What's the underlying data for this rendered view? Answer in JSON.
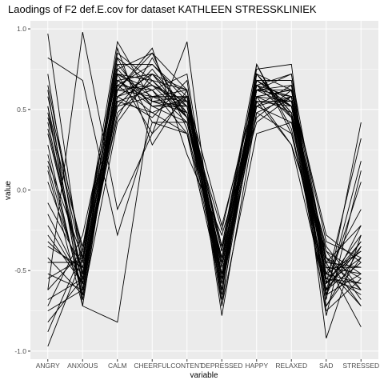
{
  "chart_data": {
    "type": "line",
    "title": "Laodings of F2 def.E.cov for dataset KATHLEEN STRESSKLINIEK",
    "xlabel": "variable",
    "ylabel": "value",
    "categories": [
      "ANGRY",
      "ANXIOUS",
      "CALM",
      "CHEERFUL",
      "CONTENT",
      "DEPRESSED",
      "HAPPY",
      "RELAXED",
      "SAD",
      "STRESSED"
    ],
    "ylim": [
      -1.05,
      1.05
    ],
    "yticks": [
      -1.0,
      -0.5,
      0.0,
      0.5,
      1.0
    ],
    "ytick_labels": [
      "-1.0",
      "-0.5",
      "0.0",
      "0.5",
      "1.0"
    ],
    "grid": true,
    "series_color": "#000000",
    "panel_color": "#ebebeb",
    "grid_color": "#ffffff",
    "series": [
      {
        "values": [
          0.97,
          -0.52,
          0.82,
          0.65,
          0.45,
          -0.38,
          0.72,
          0.46,
          -0.52,
          -0.38
        ]
      },
      {
        "values": [
          -0.97,
          -0.42,
          0.75,
          0.85,
          0.62,
          -0.55,
          0.65,
          0.58,
          -0.78,
          0.12
        ]
      },
      {
        "values": [
          0.82,
          0.68,
          -0.28,
          0.42,
          0.35,
          -0.62,
          0.58,
          0.28,
          -0.65,
          -0.52
        ]
      },
      {
        "values": [
          -0.88,
          -0.38,
          0.92,
          0.55,
          0.58,
          -0.45,
          0.68,
          0.52,
          -0.45,
          -0.22
        ]
      },
      {
        "values": [
          0.52,
          -0.68,
          0.62,
          0.88,
          0.22,
          -0.28,
          0.45,
          0.62,
          -0.28,
          -0.45
        ]
      },
      {
        "values": [
          -0.62,
          0.98,
          -0.12,
          0.35,
          0.92,
          -0.72,
          0.35,
          0.42,
          -0.35,
          -0.62
        ]
      },
      {
        "values": [
          0.12,
          -0.72,
          0.68,
          0.72,
          0.52,
          -0.35,
          0.78,
          0.35,
          -0.58,
          0.32
        ]
      },
      {
        "values": [
          -0.45,
          -0.45,
          0.88,
          0.28,
          0.62,
          -0.52,
          0.62,
          0.72,
          -0.72,
          -0.35
        ]
      },
      {
        "values": [
          0.38,
          -0.52,
          0.45,
          0.82,
          0.45,
          -0.48,
          0.52,
          0.58,
          -0.42,
          -0.72
        ]
      },
      {
        "values": [
          -0.72,
          -0.28,
          0.72,
          0.62,
          0.35,
          -0.62,
          0.72,
          0.48,
          -0.62,
          0.05
        ]
      },
      {
        "values": [
          0.62,
          -0.72,
          -0.82,
          0.58,
          0.55,
          -0.38,
          0.58,
          0.62,
          -0.32,
          -0.42
        ]
      },
      {
        "values": [
          -0.28,
          -0.58,
          0.58,
          0.45,
          0.68,
          -0.78,
          0.48,
          0.35,
          -0.55,
          -0.58
        ]
      },
      {
        "values": [
          0.45,
          -0.35,
          0.78,
          0.52,
          0.42,
          -0.42,
          0.75,
          0.78,
          -0.92,
          -0.28
        ]
      },
      {
        "values": [
          -0.52,
          -0.62,
          0.65,
          0.78,
          0.58,
          -0.22,
          0.62,
          0.52,
          -0.48,
          -0.48
        ]
      },
      {
        "values": [
          0.18,
          -0.42,
          0.85,
          0.68,
          0.48,
          -0.55,
          0.68,
          0.68,
          -0.68,
          0.42
        ]
      },
      {
        "values": [
          -0.82,
          -0.55,
          0.52,
          0.58,
          0.62,
          -0.68,
          0.55,
          0.28,
          -0.38,
          -0.68
        ]
      },
      {
        "values": [
          0.72,
          -0.62,
          0.72,
          0.35,
          0.58,
          -0.35,
          0.42,
          0.58,
          -0.58,
          -0.32
        ]
      },
      {
        "values": [
          -0.35,
          -0.48,
          0.62,
          0.85,
          0.38,
          -0.58,
          0.72,
          0.45,
          -0.75,
          -0.55
        ]
      },
      {
        "values": [
          0.28,
          -0.68,
          0.42,
          0.72,
          0.52,
          -0.45,
          0.65,
          0.72,
          -0.45,
          -0.85
        ]
      },
      {
        "values": [
          -0.62,
          -0.38,
          0.82,
          0.42,
          0.42,
          -0.52,
          0.58,
          0.62,
          -0.52,
          -0.12
        ]
      },
      {
        "values": [
          0.05,
          -0.55,
          0.55,
          0.62,
          0.72,
          -0.62,
          0.52,
          0.42,
          -0.62,
          -0.45
        ]
      },
      {
        "values": [
          -0.42,
          -0.65,
          0.68,
          0.55,
          0.48,
          -0.25,
          0.68,
          0.55,
          -0.42,
          -0.62
        ]
      },
      {
        "values": [
          0.52,
          -0.45,
          0.78,
          0.78,
          0.55,
          -0.48,
          0.62,
          0.65,
          -0.55,
          -0.38
        ]
      },
      {
        "values": [
          -0.22,
          -0.58,
          0.48,
          0.68,
          0.62,
          -0.72,
          0.78,
          0.38,
          -0.65,
          0.18
        ]
      },
      {
        "values": [
          0.65,
          -0.42,
          0.65,
          0.48,
          0.35,
          -0.42,
          0.55,
          0.52,
          -0.38,
          -0.52
        ]
      },
      {
        "values": [
          -0.75,
          -0.62,
          0.58,
          0.72,
          0.45,
          -0.58,
          0.48,
          0.58,
          -0.72,
          -0.42
        ]
      },
      {
        "values": [
          0.35,
          -0.52,
          0.72,
          0.58,
          0.58,
          -0.35,
          0.72,
          0.48,
          -0.48,
          -0.72
        ]
      },
      {
        "values": [
          -0.08,
          -0.48,
          0.62,
          0.65,
          0.52,
          -0.52,
          0.62,
          0.62,
          -0.58,
          -0.28
        ]
      },
      {
        "values": [
          0.42,
          -0.58,
          0.52,
          0.75,
          0.48,
          -0.62,
          0.58,
          0.55,
          -0.52,
          -0.58
        ]
      },
      {
        "values": [
          -0.55,
          -0.42,
          0.75,
          0.52,
          0.55,
          -0.45,
          0.65,
          0.45,
          -0.62,
          -0.35
        ]
      },
      {
        "values": [
          0.22,
          -0.65,
          0.65,
          0.62,
          0.42,
          -0.55,
          0.52,
          0.65,
          -0.45,
          -0.48
        ]
      },
      {
        "values": [
          -0.32,
          -0.52,
          0.58,
          0.72,
          0.62,
          -0.48,
          0.68,
          0.52,
          -0.55,
          -0.62
        ]
      },
      {
        "values": [
          0.58,
          -0.38,
          0.68,
          0.55,
          0.52,
          -0.58,
          0.62,
          0.58,
          -0.65,
          -0.22
        ]
      },
      {
        "values": [
          -0.68,
          -0.55,
          0.72,
          0.68,
          0.45,
          -0.42,
          0.58,
          0.48,
          -0.42,
          -0.55
        ]
      },
      {
        "values": [
          0.15,
          -0.62,
          0.55,
          0.48,
          0.58,
          -0.65,
          0.72,
          0.62,
          -0.58,
          -0.42
        ]
      },
      {
        "values": [
          -0.45,
          -0.45,
          0.62,
          0.58,
          0.48,
          -0.52,
          0.55,
          0.55,
          -0.52,
          -0.65
        ]
      },
      {
        "values": [
          0.48,
          -0.55,
          0.58,
          0.65,
          0.55,
          -0.38,
          0.65,
          0.52,
          -0.62,
          -0.32
        ]
      },
      {
        "values": [
          -0.15,
          -0.58,
          0.68,
          0.52,
          0.52,
          -0.55,
          0.62,
          0.58,
          -0.48,
          -0.52
        ]
      }
    ]
  }
}
